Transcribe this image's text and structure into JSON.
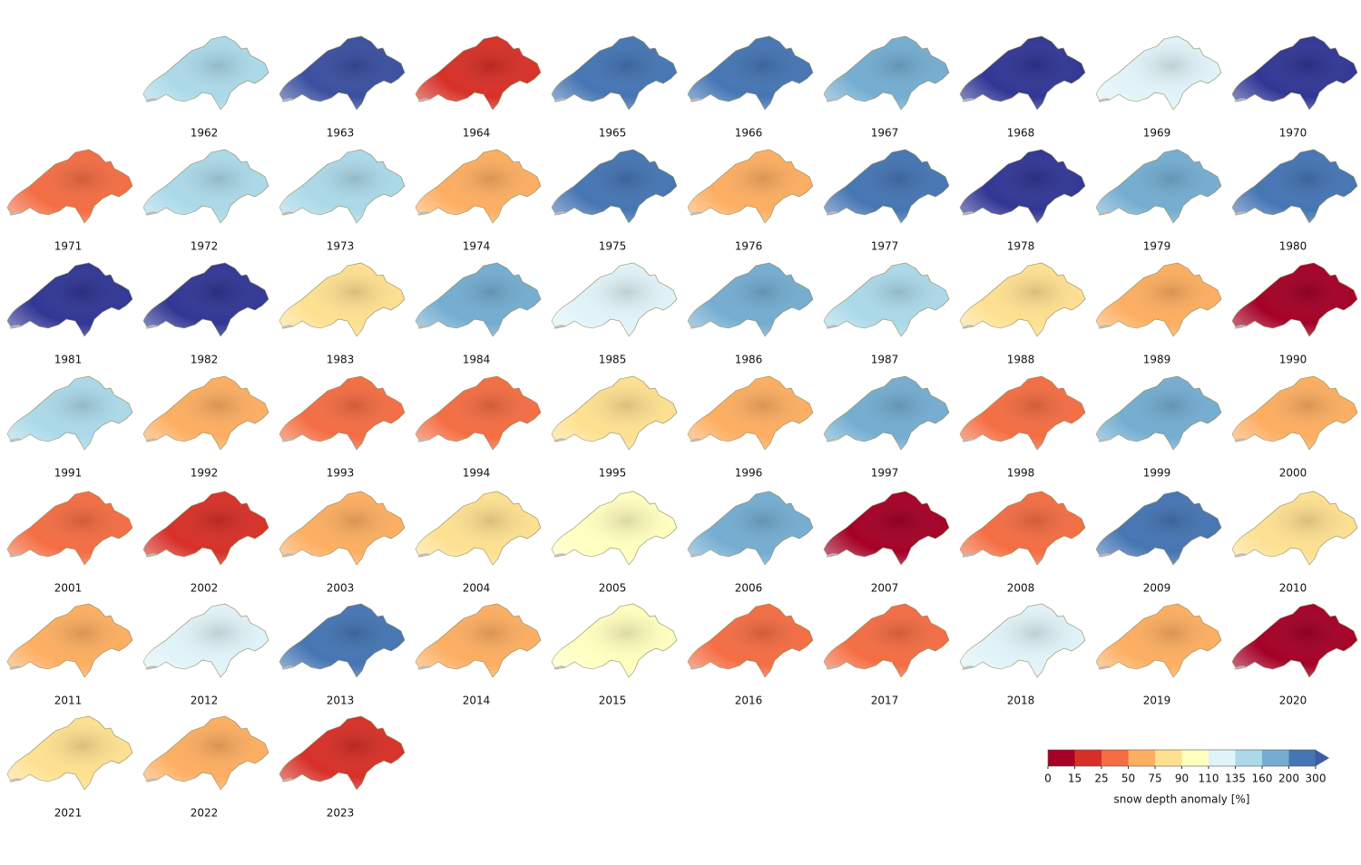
{
  "panels": [
    {
      "year": "1962",
      "color": "#abd9e9"
    },
    {
      "year": "1963",
      "color": "#3a4fa0"
    },
    {
      "year": "1964",
      "color": "#d73027"
    },
    {
      "year": "1965",
      "color": "#4575b4"
    },
    {
      "year": "1966",
      "color": "#4575b4"
    },
    {
      "year": "1967",
      "color": "#74add1"
    },
    {
      "year": "1968",
      "color": "#313695"
    },
    {
      "year": "1969",
      "color": "#e0f3f8"
    },
    {
      "year": "1970",
      "color": "#313695"
    },
    {
      "year": "1971",
      "color": "#f46d43"
    },
    {
      "year": "1972",
      "color": "#abd9e9"
    },
    {
      "year": "1973",
      "color": "#abd9e9"
    },
    {
      "year": "1974",
      "color": "#fdae61"
    },
    {
      "year": "1975",
      "color": "#4575b4"
    },
    {
      "year": "1976",
      "color": "#fdae61"
    },
    {
      "year": "1977",
      "color": "#4575b4"
    },
    {
      "year": "1978",
      "color": "#313695"
    },
    {
      "year": "1979",
      "color": "#74add1"
    },
    {
      "year": "1980",
      "color": "#4575b4"
    },
    {
      "year": "1981",
      "color": "#313695"
    },
    {
      "year": "1982",
      "color": "#313695"
    },
    {
      "year": "1983",
      "color": "#fee090"
    },
    {
      "year": "1984",
      "color": "#74add1"
    },
    {
      "year": "1985",
      "color": "#e0f3f8"
    },
    {
      "year": "1986",
      "color": "#74add1"
    },
    {
      "year": "1987",
      "color": "#abd9e9"
    },
    {
      "year": "1988",
      "color": "#fee090"
    },
    {
      "year": "1989",
      "color": "#fdae61"
    },
    {
      "year": "1990",
      "color": "#a50026"
    },
    {
      "year": "1991",
      "color": "#abd9e9"
    },
    {
      "year": "1992",
      "color": "#fdae61"
    },
    {
      "year": "1993",
      "color": "#f46d43"
    },
    {
      "year": "1994",
      "color": "#f46d43"
    },
    {
      "year": "1995",
      "color": "#fee090"
    },
    {
      "year": "1996",
      "color": "#fdae61"
    },
    {
      "year": "1997",
      "color": "#74add1"
    },
    {
      "year": "1998",
      "color": "#f46d43"
    },
    {
      "year": "1999",
      "color": "#74add1"
    },
    {
      "year": "2000",
      "color": "#fdae61"
    },
    {
      "year": "2001",
      "color": "#f46d43"
    },
    {
      "year": "2002",
      "color": "#d73027"
    },
    {
      "year": "2003",
      "color": "#fdae61"
    },
    {
      "year": "2004",
      "color": "#fee090"
    },
    {
      "year": "2005",
      "color": "#ffffbf"
    },
    {
      "year": "2006",
      "color": "#74add1"
    },
    {
      "year": "2007",
      "color": "#a50026"
    },
    {
      "year": "2008",
      "color": "#f46d43"
    },
    {
      "year": "2009",
      "color": "#4575b4"
    },
    {
      "year": "2010",
      "color": "#fee090"
    },
    {
      "year": "2011",
      "color": "#fdae61"
    },
    {
      "year": "2012",
      "color": "#e0f3f8"
    },
    {
      "year": "2013",
      "color": "#4575b4"
    },
    {
      "year": "2014",
      "color": "#fdae61"
    },
    {
      "year": "2015",
      "color": "#ffffbf"
    },
    {
      "year": "2016",
      "color": "#f46d43"
    },
    {
      "year": "2017",
      "color": "#f46d43"
    },
    {
      "year": "2018",
      "color": "#e0f3f8"
    },
    {
      "year": "2019",
      "color": "#fdae61"
    },
    {
      "year": "2020",
      "color": "#a50026"
    },
    {
      "year": "2021",
      "color": "#fee090"
    },
    {
      "year": "2022",
      "color": "#fdae61"
    },
    {
      "year": "2023",
      "color": "#d73027"
    }
  ],
  "colorbar": {
    "label": "snow depth anomaly [%]",
    "bounds": [
      0,
      15,
      25,
      50,
      75,
      90,
      110,
      135,
      160,
      200,
      300
    ],
    "colors": [
      "#a50026",
      "#d73027",
      "#f46d43",
      "#fdae61",
      "#fee090",
      "#ffffbf",
      "#e0f3f8",
      "#abd9e9",
      "#74add1",
      "#4575b4"
    ],
    "extend_color": "#3f5ca8"
  }
}
